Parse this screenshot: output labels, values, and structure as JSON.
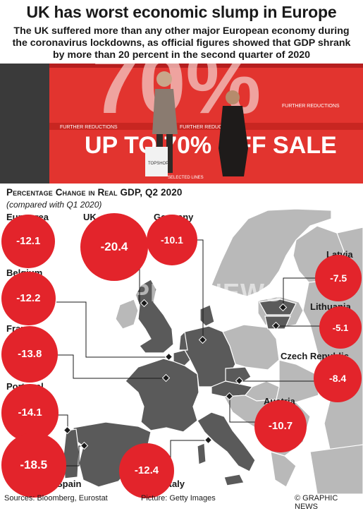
{
  "title": "UK has worst economic slump in Europe",
  "subtitle": "The UK suffered more than any other major European economy during the coronavirus lockdowns, as official figures showed that GDP shrank by more than 20 percent in the second quarter of 2020",
  "photo": {
    "banner_big": "70%",
    "banner_line": "UP TO 70% OFF SALE",
    "strip_text": "FURTHER REDUCTIONS",
    "bag_text": "TOPSHOP",
    "selected_lines": "SELECTED LINES"
  },
  "watermark": "GRAPHIC NEWS",
  "footer": {
    "sources": "Sources: Bloomberg, Eurostat",
    "picture": "Picture: Getty Images",
    "credit": "© GRAPHIC NEWS"
  },
  "colors": {
    "bubble": "#e3242b",
    "land_highlight": "#5a5a5a",
    "land": "#b9b9b9",
    "sea": "#ffffff"
  },
  "chart_data": {
    "type": "bar",
    "title": "Percentage Change in Real GDP, Q2 2020",
    "subtitle": "(compared with Q1 2020)",
    "categories": [
      "Euro area",
      "UK",
      "Germany",
      "Belgium",
      "France",
      "Portugal",
      "Spain",
      "Italy",
      "Austria",
      "Czech Republic",
      "Lithuania",
      "Latvia"
    ],
    "values": [
      -12.1,
      -20.4,
      -10.1,
      -12.2,
      -13.8,
      -14.1,
      -18.5,
      -12.4,
      -10.7,
      -8.4,
      -5.1,
      -7.5
    ],
    "value_labels": [
      "-12.1",
      "-20.4",
      "-10.1",
      "-12.2",
      "-13.8",
      "-14.1",
      "-18.5",
      "-12.4",
      "-10.7",
      "-8.4",
      "-5.1",
      "-7.5"
    ]
  }
}
